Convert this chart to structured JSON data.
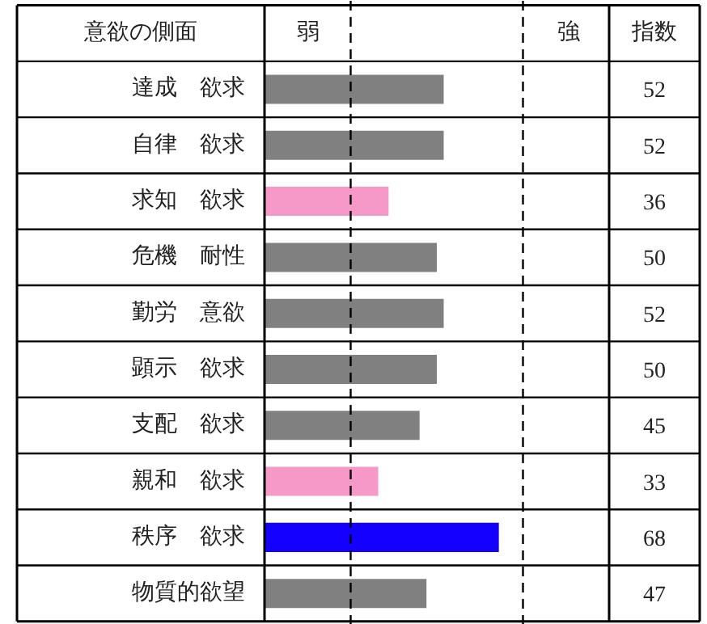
{
  "chart_data": {
    "type": "bar",
    "orientation": "horizontal",
    "ylabel": "意欲の側面",
    "annotations": [
      "弱",
      "強",
      "指数"
    ],
    "categories": [
      "達成　欲求",
      "自律　欲求",
      "求知　欲求",
      "危機　耐性",
      "勤労　意欲",
      "顕示　欲求",
      "支配　欲求",
      "親和　欲求",
      "秩序　欲求",
      "物質的欲望"
    ],
    "values": [
      52,
      52,
      36,
      50,
      52,
      50,
      45,
      33,
      68,
      47
    ],
    "colors": [
      "#808080",
      "#808080",
      "#f799c8",
      "#808080",
      "#808080",
      "#808080",
      "#808080",
      "#f799c8",
      "#1400ff",
      "#808080"
    ],
    "xlim": [
      0,
      100
    ],
    "ref_lines": [
      {
        "axis": "x",
        "value": 25,
        "line_style": "dashed",
        "color": "#000000"
      },
      {
        "axis": "x",
        "value": 75,
        "line_style": "dashed",
        "color": "#000000"
      }
    ],
    "data_labels": true,
    "grid": "y"
  }
}
